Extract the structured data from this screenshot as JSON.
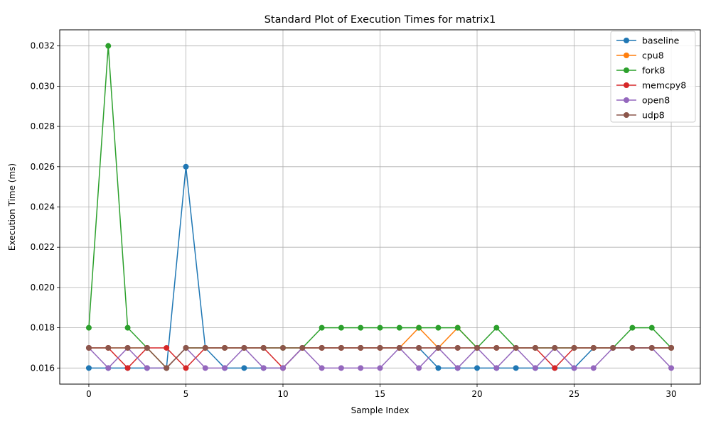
{
  "chart_data": {
    "type": "line",
    "title": "Standard Plot of Execution Times for matrix1",
    "xlabel": "Sample Index",
    "ylabel": "Execution Time (ms)",
    "xlim": [
      -1.5,
      31.5
    ],
    "ylim": [
      0.0152,
      0.0328
    ],
    "xticks": [
      0,
      5,
      10,
      15,
      20,
      25,
      30
    ],
    "yticks": [
      0.016,
      0.018,
      0.02,
      0.022,
      0.024,
      0.026,
      0.028,
      0.03,
      0.032
    ],
    "ytick_labels": [
      "0.016",
      "0.018",
      "0.020",
      "0.022",
      "0.024",
      "0.026",
      "0.028",
      "0.030",
      "0.032"
    ],
    "grid": true,
    "legend_position": "top-right",
    "x": [
      0,
      1,
      2,
      3,
      4,
      5,
      6,
      7,
      8,
      9,
      10,
      11,
      12,
      13,
      14,
      15,
      16,
      17,
      18,
      19,
      20,
      21,
      22,
      23,
      24,
      25,
      26,
      27,
      28,
      29,
      30
    ],
    "series": [
      {
        "name": "baseline",
        "color": "#1f77b4",
        "values": [
          0.016,
          0.016,
          0.016,
          0.016,
          0.016,
          0.026,
          0.017,
          0.016,
          0.016,
          0.016,
          0.016,
          0.017,
          0.017,
          0.017,
          0.017,
          0.017,
          0.017,
          0.017,
          0.016,
          0.016,
          0.016,
          0.016,
          0.016,
          0.016,
          0.016,
          0.016,
          0.017,
          0.017,
          0.017,
          0.017,
          0.017
        ]
      },
      {
        "name": "cpu8",
        "color": "#ff7f0e",
        "values": [
          0.017,
          0.017,
          0.017,
          0.017,
          0.016,
          0.017,
          0.017,
          0.017,
          0.017,
          0.017,
          0.017,
          0.017,
          0.017,
          0.017,
          0.017,
          0.017,
          0.017,
          0.018,
          0.017,
          0.018,
          0.017,
          0.017,
          0.017,
          0.017,
          0.017,
          0.017,
          0.017,
          0.017,
          0.017,
          0.017,
          0.017
        ]
      },
      {
        "name": "fork8",
        "color": "#2ca02c",
        "values": [
          0.018,
          0.032,
          0.018,
          0.017,
          0.016,
          0.017,
          0.017,
          0.017,
          0.017,
          0.017,
          0.017,
          0.017,
          0.018,
          0.018,
          0.018,
          0.018,
          0.018,
          0.018,
          0.018,
          0.018,
          0.017,
          0.018,
          0.017,
          0.017,
          0.017,
          0.017,
          0.017,
          0.017,
          0.018,
          0.018,
          0.017
        ]
      },
      {
        "name": "memcpy8",
        "color": "#d62728",
        "values": [
          0.017,
          0.017,
          0.016,
          0.017,
          0.017,
          0.016,
          0.017,
          0.017,
          0.017,
          0.017,
          0.016,
          0.017,
          0.017,
          0.017,
          0.017,
          0.017,
          0.017,
          0.017,
          0.017,
          0.017,
          0.017,
          0.017,
          0.017,
          0.017,
          0.016,
          0.017,
          0.017,
          0.017,
          0.017,
          0.017,
          0.017
        ]
      },
      {
        "name": "open8",
        "color": "#9467bd",
        "values": [
          0.017,
          0.016,
          0.017,
          0.016,
          0.016,
          0.017,
          0.016,
          0.016,
          0.017,
          0.016,
          0.016,
          0.017,
          0.016,
          0.016,
          0.016,
          0.016,
          0.017,
          0.016,
          0.017,
          0.016,
          0.017,
          0.016,
          0.017,
          0.016,
          0.017,
          0.016,
          0.016,
          0.017,
          0.017,
          0.017,
          0.016
        ]
      },
      {
        "name": "udp8",
        "color": "#8c564b",
        "values": [
          0.017,
          0.017,
          0.017,
          0.017,
          0.016,
          0.017,
          0.017,
          0.017,
          0.017,
          0.017,
          0.017,
          0.017,
          0.017,
          0.017,
          0.017,
          0.017,
          0.017,
          0.017,
          0.017,
          0.017,
          0.017,
          0.017,
          0.017,
          0.017,
          0.017,
          0.017,
          0.017,
          0.017,
          0.017,
          0.017,
          0.017
        ]
      }
    ]
  }
}
